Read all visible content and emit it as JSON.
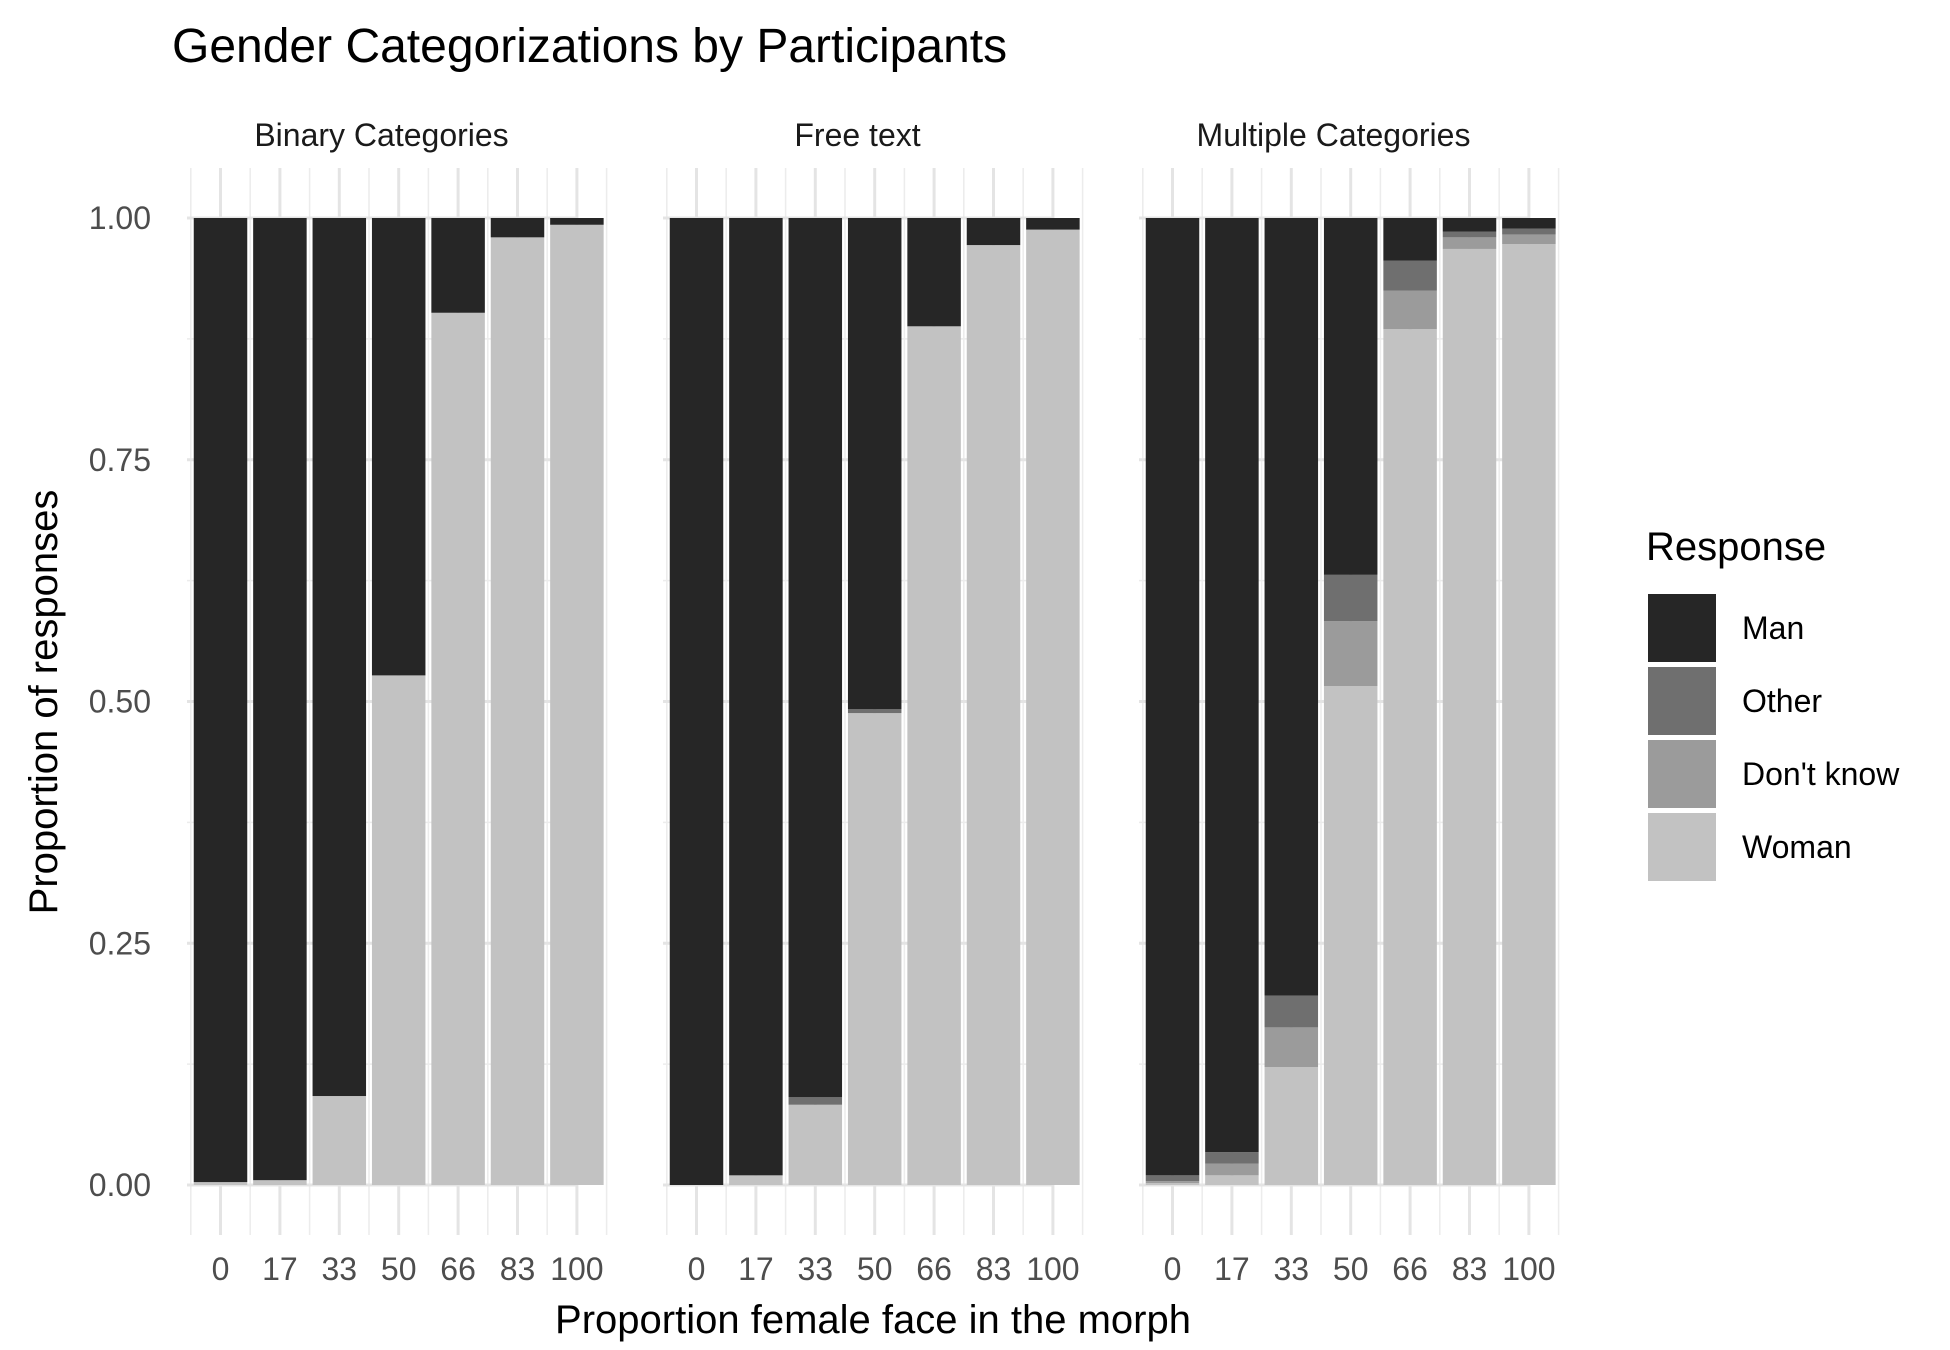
{
  "chart_data": {
    "type": "bar",
    "stacked": true,
    "title": "Gender Categorizations by Participants",
    "xlabel": "Proportion female face in the morph",
    "ylabel": "Proportion of responses",
    "ylim": [
      0,
      1
    ],
    "yticks": [
      "0.00",
      "0.25",
      "0.50",
      "0.75",
      "1.00"
    ],
    "yticks_values": [
      0,
      0.25,
      0.5,
      0.75,
      1.0
    ],
    "categories": [
      "0",
      "17",
      "33",
      "50",
      "66",
      "83",
      "100"
    ],
    "grid": true,
    "legend": {
      "title": "Response",
      "position": "right",
      "entries": [
        "Man",
        "Other",
        "Don't know",
        "Woman"
      ]
    },
    "colors": {
      "Man": "#262626",
      "Other": "#6f6f6f",
      "Don't know": "#9b9b9b",
      "Woman": "#c2c2c2"
    },
    "stack_order_bottom_to_top": [
      "Woman",
      "Don't know",
      "Other",
      "Man"
    ],
    "panels": [
      {
        "name": "Binary Categories",
        "series": [
          {
            "name": "Woman",
            "values": [
              0.003,
              0.005,
              0.092,
              0.527,
              0.902,
              0.98,
              0.993
            ]
          },
          {
            "name": "Don't know",
            "values": [
              0,
              0,
              0,
              0,
              0,
              0,
              0
            ]
          },
          {
            "name": "Other",
            "values": [
              0,
              0,
              0,
              0,
              0,
              0,
              0
            ]
          },
          {
            "name": "Man",
            "values": [
              0.997,
              0.995,
              0.908,
              0.473,
              0.098,
              0.02,
              0.007
            ]
          }
        ]
      },
      {
        "name": "Free text",
        "series": [
          {
            "name": "Woman",
            "values": [
              0.0,
              0.01,
              0.083,
              0.488,
              0.888,
              0.972,
              0.988
            ]
          },
          {
            "name": "Don't know",
            "values": [
              0,
              0,
              0,
              0,
              0,
              0,
              0
            ]
          },
          {
            "name": "Other",
            "values": [
              0.0,
              0.0,
              0.008,
              0.004,
              0.0,
              0.0,
              0.0
            ]
          },
          {
            "name": "Man",
            "values": [
              1.0,
              0.99,
              0.909,
              0.508,
              0.112,
              0.028,
              0.012
            ]
          }
        ]
      },
      {
        "name": "Multiple Categories",
        "series": [
          {
            "name": "Woman",
            "values": [
              0.002,
              0.01,
              0.122,
              0.516,
              0.885,
              0.968,
              0.973
            ]
          },
          {
            "name": "Don't know",
            "values": [
              0.002,
              0.012,
              0.041,
              0.067,
              0.04,
              0.012,
              0.01
            ]
          },
          {
            "name": "Other",
            "values": [
              0.006,
              0.012,
              0.033,
              0.048,
              0.031,
              0.006,
              0.006
            ]
          },
          {
            "name": "Man",
            "values": [
              0.99,
              0.966,
              0.804,
              0.369,
              0.044,
              0.014,
              0.011
            ]
          }
        ]
      }
    ]
  }
}
